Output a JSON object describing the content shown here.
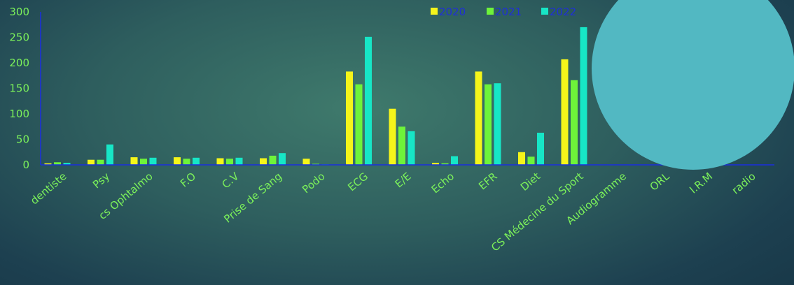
{
  "chart_data": {
    "type": "bar",
    "title": "",
    "xlabel": "",
    "ylabel": "",
    "ylim": [
      0,
      300
    ],
    "yticks": [
      0,
      50,
      100,
      150,
      200,
      250,
      300
    ],
    "grid": false,
    "legend_position": "top-right",
    "categories": [
      "dentiste",
      "Psy",
      "cs Ophtalmo",
      "F.O",
      "C.V",
      "Prise de Sang",
      "Podo",
      "ECG",
      "E/E",
      "Echo",
      "EFR",
      "Diet",
      "CS Médecine du Sport",
      "Audiogramme",
      "ORL",
      "I.R.M",
      "radio"
    ],
    "series": [
      {
        "name": "2020",
        "color": "#f5f51a",
        "values": [
          3,
          10,
          15,
          15,
          13,
          13,
          12,
          183,
          110,
          4,
          183,
          25,
          207,
          0,
          0,
          8,
          0
        ]
      },
      {
        "name": "2021",
        "color": "#6ef33a",
        "values": [
          5,
          10,
          12,
          12,
          12,
          18,
          2,
          158,
          75,
          3,
          158,
          16,
          166,
          0,
          0,
          5,
          0
        ]
      },
      {
        "name": "2022",
        "color": "#17e6c6",
        "values": [
          4,
          40,
          14,
          14,
          14,
          23,
          1,
          251,
          66,
          17,
          160,
          63,
          270,
          0,
          0,
          4,
          0
        ]
      }
    ],
    "axis_color": "#1a2ee0",
    "overlay_color": "#52b8c2"
  }
}
